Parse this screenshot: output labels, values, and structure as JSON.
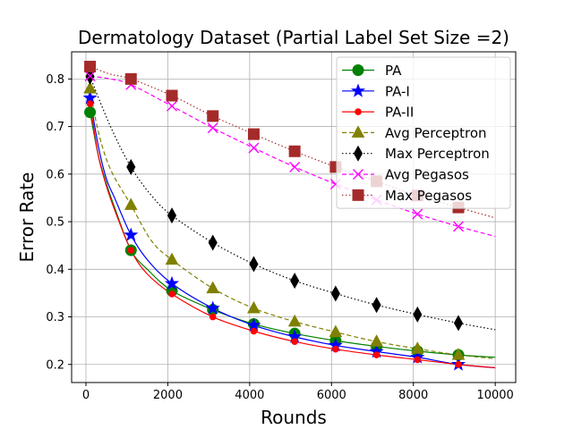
{
  "chart_data": {
    "type": "line",
    "title": "Dermatology Dataset (Partial Label Set Size =2)",
    "xlabel": "Rounds",
    "ylabel": "Error Rate",
    "xlim": [
      -350,
      10500
    ],
    "ylim": [
      0.162,
      0.857
    ],
    "xticks": [
      0,
      2000,
      4000,
      6000,
      8000,
      10000
    ],
    "yticks": [
      0.2,
      0.3,
      0.4,
      0.5,
      0.6,
      0.7,
      0.8
    ],
    "xtick_labels": [
      "0",
      "2000",
      "4000",
      "6000",
      "8000",
      "10000"
    ],
    "ytick_labels": [
      "0.2",
      "0.3",
      "0.4",
      "0.5",
      "0.6",
      "0.7",
      "0.8"
    ],
    "grid": true,
    "legend_position": "top-right",
    "marker_x": [
      100,
      1100,
      2100,
      3100,
      4100,
      5100,
      6100,
      7100,
      8100,
      9100
    ],
    "series": [
      {
        "name": "PA",
        "color": "#008000",
        "line_style": "solid",
        "marker": "circle",
        "x": [
          100,
          300,
          500,
          700,
          1100,
          1500,
          2100,
          3100,
          4100,
          5100,
          6100,
          7100,
          8100,
          9100,
          10000
        ],
        "y": [
          0.73,
          0.64,
          0.58,
          0.53,
          0.44,
          0.4,
          0.355,
          0.315,
          0.285,
          0.265,
          0.25,
          0.238,
          0.228,
          0.22,
          0.215
        ]
      },
      {
        "name": "PA-I",
        "color": "#0000ff",
        "line_style": "solid",
        "marker": "star",
        "x": [
          100,
          300,
          500,
          700,
          1100,
          1500,
          2100,
          3100,
          4100,
          5100,
          6100,
          7100,
          8100,
          9100,
          10000
        ],
        "y": [
          0.76,
          0.66,
          0.59,
          0.55,
          0.472,
          0.42,
          0.37,
          0.318,
          0.282,
          0.258,
          0.24,
          0.227,
          0.215,
          0.2,
          0.193
        ]
      },
      {
        "name": "PA-II",
        "color": "#ff0000",
        "line_style": "solid",
        "marker": "dot",
        "x": [
          100,
          300,
          500,
          700,
          1100,
          1500,
          2100,
          3100,
          4100,
          5100,
          6100,
          7100,
          8100,
          9100,
          10000
        ],
        "y": [
          0.748,
          0.64,
          0.575,
          0.525,
          0.44,
          0.39,
          0.348,
          0.3,
          0.27,
          0.248,
          0.232,
          0.22,
          0.21,
          0.2,
          0.193
        ]
      },
      {
        "name": "Avg Perceptron",
        "color": "#808000",
        "line_style": "dashed",
        "marker": "triangle",
        "x": [
          100,
          300,
          600,
          1100,
          1600,
          2100,
          3100,
          4100,
          5100,
          6100,
          7100,
          8100,
          9100,
          10000
        ],
        "y": [
          0.78,
          0.69,
          0.61,
          0.535,
          0.46,
          0.42,
          0.36,
          0.318,
          0.29,
          0.268,
          0.248,
          0.233,
          0.22,
          0.212
        ]
      },
      {
        "name": "Max Perceptron",
        "color": "#000000",
        "line_style": "dotted",
        "marker": "thin-diamond",
        "x": [
          100,
          600,
          1100,
          1600,
          2100,
          3100,
          4100,
          5100,
          6100,
          7100,
          8100,
          9100,
          10000
        ],
        "y": [
          0.805,
          0.7,
          0.615,
          0.555,
          0.513,
          0.456,
          0.411,
          0.376,
          0.349,
          0.325,
          0.305,
          0.287,
          0.273
        ]
      },
      {
        "name": "Avg Pegasos",
        "color": "#ff00ff",
        "line_style": "dashed",
        "marker": "x",
        "x": [
          100,
          600,
          1100,
          2100,
          3100,
          4100,
          5100,
          6100,
          7100,
          8100,
          9100,
          10000
        ],
        "y": [
          0.806,
          0.8,
          0.788,
          0.743,
          0.697,
          0.655,
          0.615,
          0.579,
          0.546,
          0.516,
          0.49,
          0.469
        ]
      },
      {
        "name": "Max Pegasos",
        "color": "#a52a2a",
        "line_style": "dotted",
        "marker": "square",
        "x": [
          100,
          600,
          1100,
          2100,
          3100,
          4100,
          5100,
          6100,
          7100,
          8100,
          9100,
          10000
        ],
        "y": [
          0.826,
          0.81,
          0.8,
          0.765,
          0.722,
          0.684,
          0.648,
          0.615,
          0.585,
          0.555,
          0.53,
          0.508
        ]
      }
    ]
  }
}
